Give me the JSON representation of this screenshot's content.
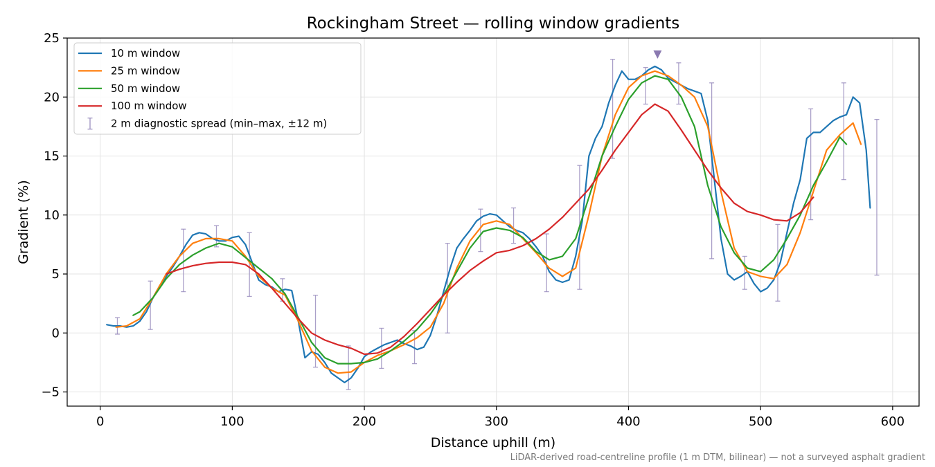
{
  "chart_data": {
    "type": "line",
    "title": "Rockingham Street — rolling window gradients",
    "xlabel": "Distance uphill (m)",
    "ylabel": "Gradient (%)",
    "xlim": [
      -25,
      620
    ],
    "ylim": [
      -6.2,
      25
    ],
    "xticks": [
      0,
      100,
      200,
      300,
      400,
      500,
      600
    ],
    "yticks": [
      -5,
      0,
      5,
      10,
      15,
      20,
      25
    ],
    "xtick_labels": [
      "0",
      "100",
      "200",
      "300",
      "400",
      "500",
      "600"
    ],
    "ytick_labels": [
      "−5",
      "0",
      "5",
      "10",
      "15",
      "20",
      "25"
    ],
    "grid": true,
    "legend_position": "top-left",
    "footnote": "LiDAR-derived road-centreline profile (1 m DTM, bilinear) — not a surveyed asphalt gradient",
    "series": [
      {
        "name": "10 m window",
        "color": "#1f77b4",
        "x": [
          5,
          10,
          15,
          20,
          25,
          30,
          35,
          40,
          45,
          50,
          55,
          60,
          65,
          70,
          75,
          80,
          85,
          90,
          95,
          100,
          105,
          110,
          115,
          120,
          125,
          130,
          135,
          140,
          145,
          150,
          155,
          160,
          165,
          170,
          175,
          180,
          185,
          190,
          195,
          200,
          205,
          210,
          215,
          220,
          225,
          230,
          235,
          240,
          245,
          250,
          255,
          260,
          265,
          270,
          275,
          280,
          285,
          290,
          295,
          300,
          305,
          310,
          315,
          320,
          325,
          330,
          335,
          340,
          345,
          350,
          355,
          360,
          365,
          370,
          375,
          380,
          385,
          390,
          395,
          400,
          405,
          410,
          415,
          420,
          425,
          430,
          435,
          440,
          445,
          450,
          455,
          460,
          465,
          470,
          475,
          480,
          485,
          490,
          495,
          500,
          505,
          510,
          515,
          520,
          525,
          530,
          535,
          540,
          545,
          550,
          555,
          560,
          565,
          570,
          575,
          580,
          583
        ],
        "y": [
          0.7,
          0.6,
          0.6,
          0.5,
          0.6,
          1.0,
          1.8,
          3.0,
          4.0,
          4.8,
          5.6,
          6.5,
          7.5,
          8.3,
          8.5,
          8.4,
          8.0,
          7.8,
          7.8,
          8.1,
          8.2,
          7.5,
          6.0,
          4.5,
          4.1,
          3.9,
          3.5,
          3.7,
          3.6,
          1.0,
          -2.1,
          -1.6,
          -1.8,
          -2.5,
          -3.4,
          -3.8,
          -4.2,
          -3.8,
          -3.0,
          -2.0,
          -1.6,
          -1.3,
          -1.0,
          -0.8,
          -0.6,
          -0.9,
          -1.1,
          -1.4,
          -1.2,
          -0.2,
          1.5,
          3.5,
          5.5,
          7.2,
          8.0,
          8.7,
          9.5,
          9.9,
          10.1,
          10.0,
          9.5,
          9.0,
          8.7,
          8.5,
          8.0,
          7.3,
          6.5,
          5.2,
          4.5,
          4.3,
          4.5,
          6.5,
          9.5,
          15.0,
          16.5,
          17.5,
          19.5,
          21.0,
          22.2,
          21.5,
          21.5,
          21.8,
          22.3,
          22.6,
          22.3,
          21.6,
          21.3,
          21.0,
          20.7,
          20.5,
          20.3,
          18.0,
          13.0,
          8.0,
          5.0,
          4.5,
          4.8,
          5.2,
          4.2,
          3.5,
          3.8,
          4.5,
          6.0,
          8.5,
          11.0,
          13.0,
          16.5,
          17.0,
          17.0,
          17.5,
          18.0,
          18.3,
          18.5,
          20.0,
          19.5,
          15.5,
          10.6
        ]
      },
      {
        "name": "25 m window",
        "color": "#ff7f0e",
        "x": [
          12,
          20,
          30,
          40,
          50,
          60,
          70,
          80,
          90,
          100,
          110,
          120,
          130,
          140,
          150,
          160,
          170,
          180,
          190,
          200,
          210,
          220,
          230,
          240,
          250,
          260,
          270,
          280,
          290,
          300,
          310,
          320,
          330,
          340,
          350,
          360,
          370,
          380,
          390,
          400,
          410,
          420,
          430,
          440,
          450,
          460,
          470,
          480,
          490,
          500,
          510,
          520,
          530,
          540,
          550,
          560,
          570,
          576
        ],
        "y": [
          0.5,
          0.6,
          1.2,
          3.0,
          5.0,
          6.5,
          7.6,
          8.0,
          8.0,
          7.8,
          6.5,
          4.8,
          3.8,
          3.2,
          1.0,
          -1.5,
          -2.9,
          -3.4,
          -3.3,
          -2.5,
          -1.9,
          -1.5,
          -1.0,
          -0.4,
          0.5,
          2.5,
          5.5,
          7.8,
          9.2,
          9.5,
          9.2,
          8.0,
          6.8,
          5.5,
          4.8,
          5.5,
          10.0,
          15.0,
          18.5,
          20.8,
          21.8,
          22.2,
          21.8,
          21.0,
          20.0,
          17.5,
          12.0,
          7.2,
          5.2,
          4.8,
          4.6,
          5.8,
          8.5,
          12.0,
          15.5,
          16.8,
          17.8,
          16.0
        ]
      },
      {
        "name": "50 m window",
        "color": "#2ca02c",
        "x": [
          25,
          30,
          40,
          50,
          60,
          70,
          80,
          90,
          100,
          110,
          120,
          130,
          140,
          150,
          160,
          170,
          180,
          190,
          200,
          210,
          220,
          230,
          240,
          250,
          260,
          270,
          280,
          290,
          300,
          310,
          320,
          330,
          340,
          350,
          360,
          370,
          380,
          390,
          400,
          410,
          420,
          430,
          440,
          450,
          460,
          470,
          480,
          490,
          500,
          510,
          520,
          530,
          540,
          550,
          560,
          565
        ],
        "y": [
          1.5,
          1.8,
          3.0,
          4.6,
          5.8,
          6.6,
          7.2,
          7.6,
          7.3,
          6.4,
          5.5,
          4.6,
          3.3,
          1.3,
          -0.8,
          -2.1,
          -2.6,
          -2.6,
          -2.5,
          -2.2,
          -1.5,
          -0.7,
          0.3,
          1.6,
          3.2,
          5.2,
          7.2,
          8.6,
          8.9,
          8.7,
          8.1,
          6.9,
          6.2,
          6.5,
          8.0,
          11.5,
          15.0,
          17.5,
          19.8,
          21.2,
          21.8,
          21.5,
          20.0,
          17.5,
          12.5,
          9.0,
          6.8,
          5.5,
          5.2,
          6.2,
          8.0,
          10.0,
          12.5,
          14.5,
          16.6,
          16.0
        ]
      },
      {
        "name": "100 m window",
        "color": "#d62728",
        "x": [
          50,
          60,
          70,
          80,
          90,
          100,
          110,
          120,
          130,
          140,
          150,
          160,
          170,
          180,
          190,
          200,
          210,
          220,
          230,
          240,
          250,
          260,
          270,
          280,
          290,
          300,
          310,
          320,
          330,
          340,
          350,
          360,
          370,
          380,
          390,
          400,
          410,
          420,
          430,
          440,
          450,
          460,
          470,
          480,
          490,
          500,
          510,
          520,
          530,
          540
        ],
        "y": [
          5.0,
          5.4,
          5.7,
          5.9,
          6.0,
          6.0,
          5.8,
          5.0,
          3.8,
          2.5,
          1.2,
          0.0,
          -0.6,
          -1.0,
          -1.3,
          -1.8,
          -1.7,
          -1.2,
          -0.3,
          0.8,
          2.0,
          3.2,
          4.3,
          5.3,
          6.1,
          6.8,
          7.0,
          7.4,
          8.0,
          8.8,
          9.8,
          11.0,
          12.2,
          13.8,
          15.5,
          17.0,
          18.5,
          19.4,
          18.8,
          17.2,
          15.5,
          13.8,
          12.3,
          11.0,
          10.3,
          10.0,
          9.6,
          9.5,
          10.2,
          11.5
        ]
      }
    ],
    "error_series": {
      "name": "2 m diagnostic spread (min–max, ±12 m)",
      "color": "#9b8fbf",
      "points": [
        {
          "x": 13,
          "low": -0.1,
          "high": 1.3
        },
        {
          "x": 38,
          "low": 0.3,
          "high": 4.4
        },
        {
          "x": 63,
          "low": 3.5,
          "high": 8.8
        },
        {
          "x": 88,
          "low": 7.3,
          "high": 9.1
        },
        {
          "x": 113,
          "low": 3.1,
          "high": 8.5
        },
        {
          "x": 138,
          "low": 2.7,
          "high": 4.6
        },
        {
          "x": 163,
          "low": -2.9,
          "high": 3.2
        },
        {
          "x": 188,
          "low": -4.8,
          "high": -1.1
        },
        {
          "x": 213,
          "low": -3.0,
          "high": 0.4
        },
        {
          "x": 238,
          "low": -2.6,
          "high": 0.2
        },
        {
          "x": 263,
          "low": 0.0,
          "high": 7.6
        },
        {
          "x": 288,
          "low": 6.9,
          "high": 10.5
        },
        {
          "x": 313,
          "low": 7.6,
          "high": 10.6
        },
        {
          "x": 338,
          "low": 3.5,
          "high": 8.4
        },
        {
          "x": 363,
          "low": 3.7,
          "high": 14.2
        },
        {
          "x": 388,
          "low": 14.8,
          "high": 23.2
        },
        {
          "x": 413,
          "low": 19.4,
          "high": 22.5
        },
        {
          "x": 438,
          "low": 19.4,
          "high": 22.9
        },
        {
          "x": 463,
          "low": 6.3,
          "high": 21.2
        },
        {
          "x": 488,
          "low": 3.7,
          "high": 6.5
        },
        {
          "x": 513,
          "low": 2.7,
          "high": 9.2
        },
        {
          "x": 538,
          "low": 9.6,
          "high": 19.0
        },
        {
          "x": 563,
          "low": 13.0,
          "high": 21.2
        },
        {
          "x": 588,
          "low": 4.9,
          "high": 18.1
        }
      ]
    },
    "annotations": [
      {
        "type": "marker",
        "shape": "triangle-down",
        "x": 422,
        "y": 23.6,
        "color": "#8a79b0"
      }
    ]
  }
}
